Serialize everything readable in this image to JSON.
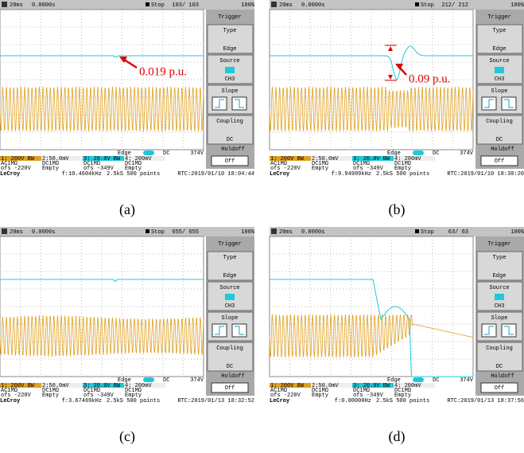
{
  "panels": [
    {
      "caption": "(a)",
      "header": {
        "timebase": "20ms",
        "delay": "0.0000s",
        "status": "Stop",
        "count": "103/ 103",
        "zoom": "100%"
      },
      "menu": {
        "title": "Trigger",
        "type": "Type",
        "type_value": "Edge",
        "source": "Source",
        "source_value": "CH3",
        "slope": "Slope",
        "coupling": "Coupling",
        "coupling_value": "DC",
        "holdoff": "Holdoff",
        "holdoff_value": "Off"
      },
      "status": {
        "trigger": "Edge",
        "coupling": "DC",
        "level": "374V"
      },
      "channels": [
        [
          "1: 200V BW",
          "AC1MΩ",
          "ofs -220V"
        ],
        [
          "2:50.0mV",
          "DC1MΩ",
          "Empty"
        ],
        [
          "3: 20.0V BW",
          "DC1MΩ",
          "ofs -349V"
        ],
        [
          "4: 200mV",
          "DC1MΩ",
          "Empty"
        ]
      ],
      "footer": {
        "brand": "LeCroy",
        "freq": "f:10.4604kHz",
        "sampling": "2.5kS 500 points",
        "rtc": "RTC:2019/01/10 18:04:44"
      },
      "annotation": "0.019 p.u."
    },
    {
      "caption": "(b)",
      "header": {
        "timebase": "20ms",
        "delay": "0.0000s",
        "status": "Stop",
        "count": "212/ 212",
        "zoom": "100%"
      },
      "menu": {
        "title": "Trigger",
        "type": "Type",
        "type_value": "Edge",
        "source": "Source",
        "source_value": "CH3",
        "slope": "Slope",
        "coupling": "Coupling",
        "coupling_value": "DC",
        "holdoff": "Holdoff",
        "holdoff_value": "Off"
      },
      "status": {
        "trigger": "Edge",
        "coupling": "DC",
        "level": "374V"
      },
      "channels": [
        [
          "1: 200V BW",
          "AC1MΩ",
          "ofs -220V"
        ],
        [
          "2:50.0mV",
          "DC1MΩ",
          "Empty"
        ],
        [
          "3: 20.0V BW",
          "DC1MΩ",
          "ofs -349V"
        ],
        [
          "4: 200mV",
          "DC1MΩ",
          "Empty"
        ]
      ],
      "footer": {
        "brand": "LeCroy",
        "freq": "f:9.94989kHz",
        "sampling": "2.5kS 500 points",
        "rtc": "RTC:2019/01/10 18:30:20"
      },
      "annotation": "0.09 p.u."
    },
    {
      "caption": "(c)",
      "header": {
        "timebase": "20ms",
        "delay": "0.0000s",
        "status": "Stop",
        "count": "655/ 655",
        "zoom": "100%"
      },
      "menu": {
        "title": "Trigger",
        "type": "Type",
        "type_value": "Edge",
        "source": "Source",
        "source_value": "CH3",
        "slope": "Slope",
        "coupling": "Coupling",
        "coupling_value": "DC",
        "holdoff": "Holdoff",
        "holdoff_value": "Off"
      },
      "status": {
        "trigger": "Edge",
        "coupling": "DC",
        "level": "374V"
      },
      "channels": [
        [
          "1: 200V BW",
          "AC1MΩ",
          "ofs -220V"
        ],
        [
          "2:50.0mV",
          "DC1MΩ",
          "Empty"
        ],
        [
          "3: 20.0V BW",
          "DC1MΩ",
          "ofs -349V"
        ],
        [
          "4: 200mV",
          "DC1MΩ",
          "Empty"
        ]
      ],
      "footer": {
        "brand": "LeCroy",
        "freq": "f:3.67469kHz",
        "sampling": "2.5kS 500 points",
        "rtc": "RTC:2019/01/13 18:32:52"
      }
    },
    {
      "caption": "(d)",
      "header": {
        "timebase": "20ms",
        "delay": "0.0000s",
        "status": "Stop",
        "count": "63/ 63",
        "zoom": "100%"
      },
      "menu": {
        "title": "Trigger",
        "type": "Type",
        "type_value": "Edge",
        "source": "Source",
        "source_value": "CH3",
        "slope": "Slope",
        "coupling": "Coupling",
        "coupling_value": "DC",
        "holdoff": "Holdoff",
        "holdoff_value": "Off"
      },
      "status": {
        "trigger": "Edge",
        "coupling": "DC",
        "level": "374V"
      },
      "channels": [
        [
          "1: 200V BW",
          "AC1MΩ",
          "ofs -220V"
        ],
        [
          "2:50.0mV",
          "DC1MΩ",
          "Empty"
        ],
        [
          "3: 20.0V BW",
          "DC1MΩ",
          "ofs -349V"
        ],
        [
          "4: 200mV",
          "DC1MΩ",
          "Empty"
        ]
      ],
      "footer": {
        "brand": "LeCroy",
        "freq": "f:0.00000Hz",
        "sampling": "2.5kS 500 points",
        "rtc": "RTC:2019/01/13 18:37:56"
      }
    }
  ]
}
